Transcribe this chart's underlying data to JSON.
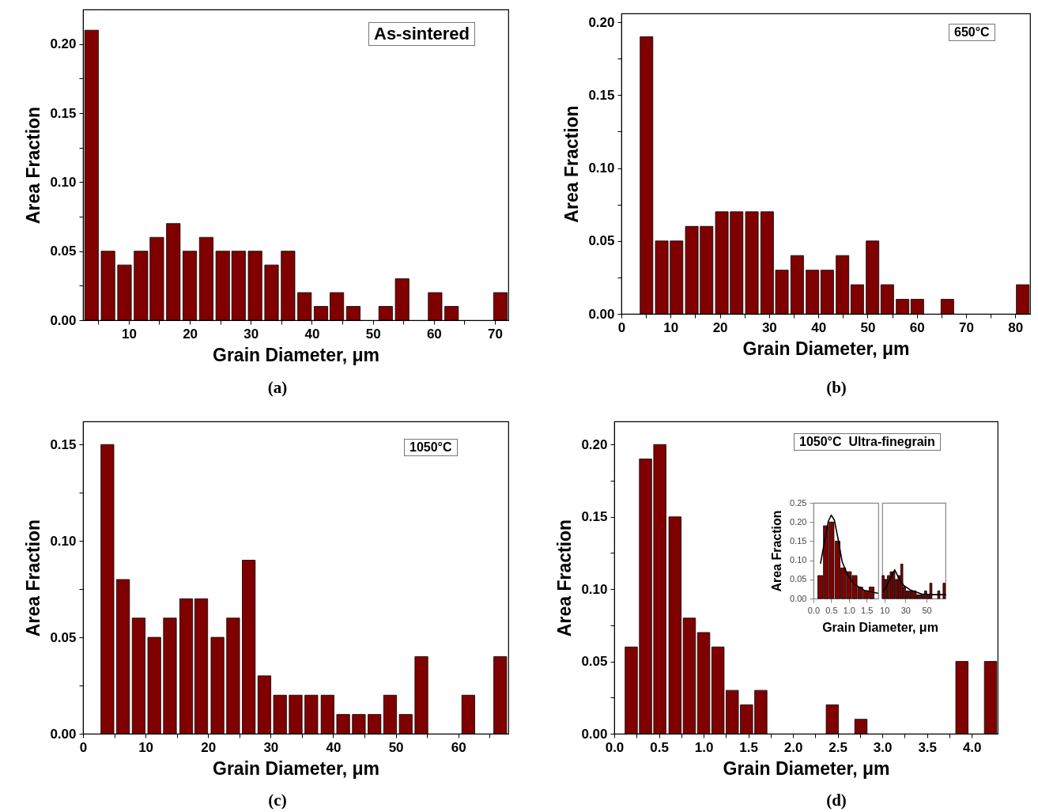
{
  "chart_data": [
    {
      "type": "bar",
      "xlabel": "Grain Diameter, μm",
      "ylabel": "Area Fraction",
      "annotations": [
        "As-sintered",
        "(a)"
      ],
      "x": [
        3.9,
        6.6,
        9.3,
        12.0,
        14.6,
        17.3,
        20.0,
        22.7,
        25.4,
        28.0,
        30.7,
        33.4,
        36.1,
        38.8,
        41.5,
        44.1,
        46.8,
        52.1,
        54.8,
        60.2,
        62.9,
        70.9
      ],
      "values": [
        0.21,
        0.05,
        0.04,
        0.05,
        0.06,
        0.07,
        0.05,
        0.06,
        0.05,
        0.05,
        0.05,
        0.04,
        0.05,
        0.02,
        0.01,
        0.02,
        0.01,
        0.01,
        0.03,
        0.02,
        0.01,
        0.02
      ],
      "color": "#800000",
      "xlim": [
        2.5,
        72.2
      ],
      "ylim": [
        0,
        0.225
      ],
      "xticks": [
        {
          "value": 5,
          "label": null
        },
        10,
        {
          "value": 15,
          "label": null
        },
        20,
        {
          "value": 25,
          "label": null
        },
        30,
        {
          "value": 35,
          "label": null
        },
        40,
        {
          "value": 45,
          "label": null
        },
        50,
        {
          "value": 55,
          "label": null
        },
        60,
        {
          "value": 65,
          "label": null
        },
        70
      ],
      "yticks": [
        {
          "value": 0,
          "label": "0.00"
        },
        {
          "value": 0.025,
          "label": null
        },
        {
          "value": 0.05,
          "label": "0.05"
        },
        {
          "value": 0.075,
          "label": null
        },
        {
          "value": 0.1,
          "label": "0.10"
        },
        {
          "value": 0.125,
          "label": null
        },
        {
          "value": 0.15,
          "label": "0.15"
        },
        {
          "value": 0.175,
          "label": null
        },
        {
          "value": 0.2,
          "label": "0.20"
        }
      ]
    },
    {
      "type": "bar",
      "xlabel": "Grain Diameter, μm",
      "ylabel": "Area Fraction",
      "annotations": [
        "650°C",
        "(b)"
      ],
      "x": [
        5.1,
        8.2,
        11.2,
        14.3,
        17.3,
        20.4,
        23.4,
        26.5,
        29.6,
        32.6,
        35.7,
        38.8,
        41.8,
        44.9,
        47.9,
        51.0,
        54.0,
        57.1,
        60.1,
        66.2,
        81.5
      ],
      "values": [
        0.19,
        0.05,
        0.05,
        0.06,
        0.06,
        0.07,
        0.07,
        0.07,
        0.07,
        0.03,
        0.04,
        0.03,
        0.03,
        0.04,
        0.02,
        0.05,
        0.02,
        0.01,
        0.01,
        0.01,
        0.02
      ],
      "color": "#800000",
      "xlim": [
        0,
        83
      ],
      "ylim": [
        0,
        0.206
      ],
      "xticks": [
        0,
        {
          "value": 5,
          "label": null
        },
        10,
        {
          "value": 15,
          "label": null
        },
        20,
        {
          "value": 25,
          "label": null
        },
        30,
        {
          "value": 35,
          "label": null
        },
        40,
        {
          "value": 45,
          "label": null
        },
        50,
        {
          "value": 55,
          "label": null
        },
        60,
        {
          "value": 65,
          "label": null
        },
        70,
        {
          "value": 75,
          "label": null
        },
        80
      ],
      "yticks": [
        {
          "value": 0,
          "label": "0.00"
        },
        {
          "value": 0.025,
          "label": null
        },
        {
          "value": 0.05,
          "label": "0.05"
        },
        {
          "value": 0.075,
          "label": null
        },
        {
          "value": 0.1,
          "label": "0.10"
        },
        {
          "value": 0.125,
          "label": null
        },
        {
          "value": 0.15,
          "label": "0.15"
        },
        {
          "value": 0.175,
          "label": null
        },
        {
          "value": 0.2,
          "label": "0.20"
        }
      ]
    },
    {
      "type": "bar",
      "xlabel": "Grain Diameter, μm",
      "ylabel": "Area Fraction",
      "annotations": [
        "1050°C",
        "(c)"
      ],
      "x": [
        3.9,
        6.4,
        8.9,
        11.4,
        13.9,
        16.5,
        18.9,
        21.5,
        24.0,
        26.5,
        29.0,
        31.5,
        34.0,
        36.5,
        39.1,
        41.6,
        44.1,
        46.6,
        49.1,
        51.6,
        54.1,
        61.6,
        66.7
      ],
      "values": [
        0.15,
        0.08,
        0.06,
        0.05,
        0.06,
        0.07,
        0.07,
        0.05,
        0.06,
        0.09,
        0.03,
        0.02,
        0.02,
        0.02,
        0.02,
        0.01,
        0.01,
        0.01,
        0.02,
        0.01,
        0.04,
        0.02,
        0.04
      ],
      "color": "#800000",
      "xlim": [
        0,
        68
      ],
      "ylim": [
        0,
        0.162
      ],
      "xticks": [
        0,
        {
          "value": 5,
          "label": null
        },
        10,
        {
          "value": 15,
          "label": null
        },
        20,
        {
          "value": 25,
          "label": null
        },
        30,
        {
          "value": 35,
          "label": null
        },
        40,
        {
          "value": 45,
          "label": null
        },
        50,
        {
          "value": 55,
          "label": null
        },
        60,
        {
          "value": 65,
          "label": null
        }
      ],
      "yticks": [
        {
          "value": 0,
          "label": "0.00"
        },
        {
          "value": 0.025,
          "label": null
        },
        {
          "value": 0.05,
          "label": "0.05"
        },
        {
          "value": 0.075,
          "label": null
        },
        {
          "value": 0.1,
          "label": "0.10"
        },
        {
          "value": 0.125,
          "label": null
        },
        {
          "value": 0.15,
          "label": "0.15"
        }
      ]
    },
    {
      "type": "bar",
      "xlabel": "Grain Diameter, μm",
      "ylabel": "Area Fraction",
      "annotations": [
        "1050°C  Ultra-finegrain",
        "(d)"
      ],
      "x": [
        0.19,
        0.35,
        0.51,
        0.68,
        0.84,
        1.0,
        1.16,
        1.32,
        1.48,
        1.64,
        2.44,
        2.76,
        3.89,
        4.21
      ],
      "values": [
        0.06,
        0.19,
        0.2,
        0.15,
        0.08,
        0.07,
        0.06,
        0.03,
        0.02,
        0.03,
        0.02,
        0.01,
        0.05,
        0.05
      ],
      "color": "#800000",
      "xlim": [
        0,
        4.29
      ],
      "ylim": [
        0,
        0.216
      ],
      "xticks": [
        {
          "value": 0,
          "label": "0.0"
        },
        {
          "value": 0.25,
          "label": null
        },
        0.5,
        {
          "value": 0.75,
          "label": null
        },
        {
          "value": 1,
          "label": "1.0"
        },
        {
          "value": 1.25,
          "label": null
        },
        1.5,
        {
          "value": 1.75,
          "label": null
        },
        {
          "value": 2,
          "label": "2.0"
        },
        {
          "value": 2.25,
          "label": null
        },
        2.5,
        {
          "value": 2.75,
          "label": null
        },
        {
          "value": 3,
          "label": "3.0"
        },
        {
          "value": 3.25,
          "label": null
        },
        3.5,
        {
          "value": 3.75,
          "label": null
        },
        {
          "value": 4,
          "label": "4.0"
        }
      ],
      "yticks": [
        {
          "value": 0,
          "label": "0.00"
        },
        {
          "value": 0.025,
          "label": null
        },
        {
          "value": 0.05,
          "label": "0.05"
        },
        {
          "value": 0.075,
          "label": null
        },
        {
          "value": 0.1,
          "label": "0.10"
        },
        {
          "value": 0.125,
          "label": null
        },
        {
          "value": 0.15,
          "label": "0.15"
        },
        {
          "value": 0.175,
          "label": null
        },
        {
          "value": 0.2,
          "label": "0.20"
        }
      ]
    },
    {
      "type": "bar",
      "xlabel": "Grain Diameter, μm",
      "ylabel": "Area Fraction",
      "xlim": [
        0,
        1.83
      ],
      "ylim": [
        0,
        0.25
      ],
      "series": [
        {
          "color": "#800000",
          "x": [
            0.19,
            0.35,
            0.51,
            0.68,
            0.84,
            1.0,
            1.16,
            1.32,
            1.48,
            1.64
          ],
          "values": [
            0.06,
            0.19,
            0.2,
            0.15,
            0.08,
            0.07,
            0.06,
            0.03,
            0.02,
            0.03
          ]
        },
        {
          "type": "line",
          "color": "#000000",
          "x": [
            0.2,
            0.33,
            0.42,
            0.5,
            0.59,
            0.69,
            0.81,
            0.96,
            1.15,
            1.44,
            1.81
          ],
          "values": [
            0.092,
            0.158,
            0.202,
            0.218,
            0.205,
            0.158,
            0.096,
            0.062,
            0.038,
            0.021,
            0.014
          ]
        }
      ],
      "xticks": [
        {
          "value": 0,
          "label": "0.0"
        },
        0.5,
        {
          "value": 1,
          "label": "1.0"
        },
        1.5
      ],
      "yticks": [
        {
          "value": 0,
          "label": "0.00"
        },
        {
          "value": 0.05,
          "label": "0.05"
        },
        {
          "value": 0.1,
          "label": "0.10"
        },
        {
          "value": 0.15,
          "label": "0.15"
        },
        {
          "value": 0.2,
          "label": "0.20"
        },
        {
          "value": 0.25,
          "label": "0.25"
        }
      ]
    },
    {
      "type": "bar",
      "xlim": [
        8,
        68
      ],
      "ylim": [
        0,
        0.25
      ],
      "tick_labels": "x",
      "series": [
        {
          "color": "#800000",
          "x": [
            8.9,
            11.4,
            13.9,
            16.5,
            18.9,
            21.5,
            24.0,
            26.5,
            29.0,
            31.5,
            34.0,
            36.5,
            39.1,
            41.6,
            44.1,
            46.6,
            49.1,
            51.6,
            54.1,
            61.6,
            66.7
          ],
          "values": [
            0.06,
            0.05,
            0.06,
            0.07,
            0.07,
            0.05,
            0.06,
            0.09,
            0.03,
            0.02,
            0.02,
            0.02,
            0.02,
            0.01,
            0.01,
            0.01,
            0.02,
            0.01,
            0.04,
            0.02,
            0.04
          ]
        },
        {
          "type": "line",
          "color": "#000000",
          "x": [
            9,
            11.2,
            14.9,
            19.8,
            23.4,
            28.3,
            35.6,
            45.4,
            55,
            68
          ],
          "values": [
            0.02,
            0.027,
            0.048,
            0.075,
            0.055,
            0.034,
            0.021,
            0.012,
            0.01,
            0.01
          ]
        }
      ],
      "xticks": [
        10,
        30,
        50
      ]
    }
  ]
}
